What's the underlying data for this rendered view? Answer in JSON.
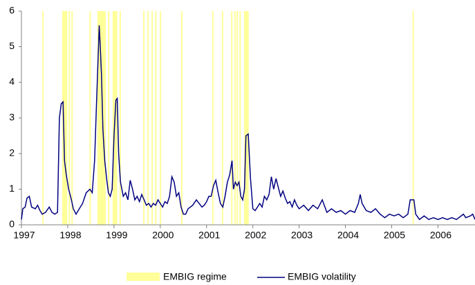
{
  "chart_data": {
    "type": "line",
    "xlim": [
      1997,
      2006.8
    ],
    "xticks": [
      1997,
      1998,
      1999,
      2000,
      2001,
      2002,
      2003,
      2004,
      2005,
      2006
    ],
    "ylim": [
      0,
      6
    ],
    "yticks": [
      0,
      1,
      2,
      3,
      4,
      5,
      6
    ],
    "series": [
      {
        "name": "EMBIG regime",
        "color": "#ffff99",
        "ranges": [
          [
            1997.45,
            1997.48
          ],
          [
            1997.88,
            1997.99
          ],
          [
            1998.02,
            1998.04
          ],
          [
            1998.08,
            1998.1
          ],
          [
            1998.47,
            1998.5
          ],
          [
            1998.64,
            1998.82
          ],
          [
            1998.87,
            1998.9
          ],
          [
            1998.97,
            1999.07
          ],
          [
            1999.12,
            1999.14
          ],
          [
            1999.63,
            1999.65
          ],
          [
            1999.72,
            1999.74
          ],
          [
            1999.81,
            1999.83
          ],
          [
            1999.89,
            1999.91
          ],
          [
            1999.99,
            2000.01
          ],
          [
            2000.45,
            2000.47
          ],
          [
            2001.12,
            2001.14
          ],
          [
            2001.33,
            2001.35
          ],
          [
            2001.53,
            2001.55
          ],
          [
            2001.6,
            2001.62
          ],
          [
            2001.65,
            2001.67
          ],
          [
            2001.71,
            2001.73
          ],
          [
            2001.81,
            2001.91
          ],
          [
            2005.45,
            2005.47
          ]
        ]
      },
      {
        "name": "EMBIG volatility",
        "color": "#000080",
        "x": [
          1997.0,
          1997.03,
          1997.08,
          1997.12,
          1997.17,
          1997.22,
          1997.3,
          1997.35,
          1997.4,
          1997.45,
          1997.52,
          1997.6,
          1997.66,
          1997.72,
          1997.78,
          1997.82,
          1997.86,
          1997.9,
          1997.93,
          1997.97,
          1998.02,
          1998.08,
          1998.12,
          1998.18,
          1998.25,
          1998.32,
          1998.4,
          1998.48,
          1998.53,
          1998.58,
          1998.62,
          1998.66,
          1998.68,
          1998.7,
          1998.73,
          1998.76,
          1998.8,
          1998.84,
          1998.88,
          1998.92,
          1998.96,
          1999.0,
          1999.04,
          1999.07,
          1999.1,
          1999.14,
          1999.2,
          1999.25,
          1999.3,
          1999.35,
          1999.4,
          1999.45,
          1999.5,
          1999.55,
          1999.6,
          1999.65,
          1999.7,
          1999.75,
          1999.8,
          1999.85,
          1999.9,
          1999.95,
          2000.0,
          2000.05,
          2000.1,
          2000.15,
          2000.2,
          2000.25,
          2000.3,
          2000.35,
          2000.4,
          2000.45,
          2000.5,
          2000.55,
          2000.6,
          2000.7,
          2000.78,
          2000.84,
          2000.9,
          2000.95,
          2001.0,
          2001.05,
          2001.1,
          2001.15,
          2001.2,
          2001.25,
          2001.3,
          2001.35,
          2001.4,
          2001.45,
          2001.5,
          2001.55,
          2001.58,
          2001.62,
          2001.66,
          2001.7,
          2001.74,
          2001.78,
          2001.82,
          2001.85,
          2001.9,
          2001.95,
          2002.0,
          2002.05,
          2002.1,
          2002.15,
          2002.2,
          2002.25,
          2002.3,
          2002.35,
          2002.4,
          2002.45,
          2002.5,
          2002.55,
          2002.6,
          2002.65,
          2002.7,
          2002.75,
          2002.8,
          2002.85,
          2002.9,
          2002.95,
          2003.0,
          2003.1,
          2003.2,
          2003.3,
          2003.4,
          2003.5,
          2003.6,
          2003.7,
          2003.8,
          2003.9,
          2004.0,
          2004.1,
          2004.2,
          2004.28,
          2004.32,
          2004.36,
          2004.45,
          2004.55,
          2004.65,
          2004.75,
          2004.85,
          2004.95,
          2005.05,
          2005.15,
          2005.25,
          2005.35,
          2005.4,
          2005.48,
          2005.52,
          2005.6,
          2005.7,
          2005.8,
          2005.9,
          2006.0,
          2006.1,
          2006.2,
          2006.3,
          2006.4,
          2006.5,
          2006.55,
          2006.6,
          2006.7,
          2006.75,
          2006.8
        ],
        "values": [
          0.15,
          0.45,
          0.5,
          0.75,
          0.8,
          0.5,
          0.45,
          0.55,
          0.4,
          0.3,
          0.35,
          0.5,
          0.35,
          0.3,
          0.35,
          3.0,
          3.4,
          3.45,
          1.8,
          1.4,
          1.0,
          0.7,
          0.45,
          0.3,
          0.45,
          0.6,
          0.9,
          1.0,
          0.9,
          1.8,
          3.3,
          4.8,
          5.6,
          5.1,
          4.2,
          2.7,
          1.8,
          1.3,
          0.9,
          0.8,
          1.0,
          2.5,
          3.5,
          3.55,
          2.0,
          1.2,
          0.8,
          0.9,
          0.7,
          1.25,
          1.0,
          0.7,
          0.8,
          0.65,
          0.85,
          0.7,
          0.55,
          0.6,
          0.5,
          0.6,
          0.55,
          0.7,
          0.6,
          0.5,
          0.65,
          0.6,
          0.8,
          1.35,
          1.2,
          0.8,
          0.9,
          0.5,
          0.3,
          0.3,
          0.45,
          0.55,
          0.7,
          0.6,
          0.5,
          0.55,
          0.65,
          0.8,
          0.8,
          1.1,
          1.25,
          0.9,
          0.6,
          0.5,
          0.8,
          1.2,
          1.4,
          1.8,
          1.0,
          1.2,
          1.1,
          1.2,
          0.8,
          0.7,
          1.0,
          2.5,
          2.55,
          1.3,
          0.45,
          0.4,
          0.5,
          0.6,
          0.5,
          0.8,
          0.7,
          0.85,
          1.35,
          1.0,
          1.3,
          1.05,
          0.8,
          0.95,
          0.75,
          0.6,
          0.65,
          0.5,
          0.7,
          0.55,
          0.45,
          0.55,
          0.4,
          0.55,
          0.45,
          0.7,
          0.35,
          0.45,
          0.35,
          0.4,
          0.3,
          0.4,
          0.35,
          0.6,
          0.85,
          0.6,
          0.4,
          0.35,
          0.45,
          0.3,
          0.2,
          0.3,
          0.25,
          0.3,
          0.2,
          0.3,
          0.7,
          0.7,
          0.3,
          0.15,
          0.25,
          0.15,
          0.2,
          0.15,
          0.2,
          0.15,
          0.2,
          0.15,
          0.25,
          0.3,
          0.2,
          0.25,
          0.3,
          0.15
        ]
      }
    ]
  }
}
